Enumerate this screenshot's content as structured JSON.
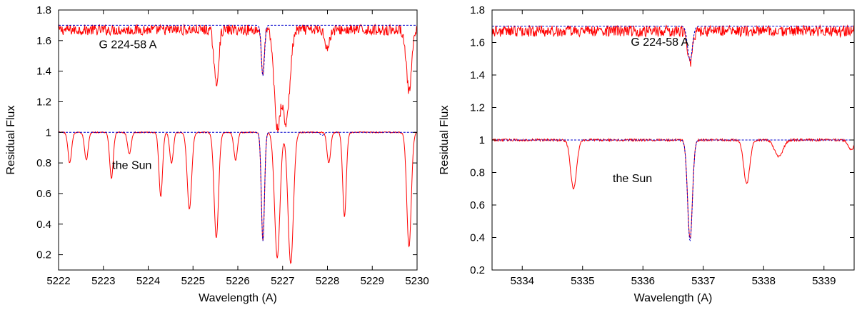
{
  "chart_data": [
    {
      "type": "line",
      "xlabel": "Wavelength (A)",
      "ylabel": "Residual Flux",
      "xlim": [
        5222,
        5230
      ],
      "ylim": [
        0.1,
        1.8
      ],
      "xticks": [
        5222,
        5223,
        5224,
        5225,
        5226,
        5227,
        5228,
        5229,
        5230
      ],
      "yticks": [
        0.2,
        0.4,
        0.6,
        0.8,
        1,
        1.2,
        1.4,
        1.6,
        1.8
      ],
      "annotations": [
        {
          "text": "G 224-58 A",
          "x": 5222.9,
          "y": 1.55
        },
        {
          "text": "the Sun",
          "x": 5223.2,
          "y": 0.76
        }
      ],
      "series": [
        {
          "style": "observed",
          "color": "#ff0000",
          "offset": 0.67,
          "noise": 0.035,
          "lines": [
            {
              "center": 5225.52,
              "depth": 0.36,
              "width": 0.05
            },
            {
              "center": 5226.56,
              "depth": 0.3,
              "width": 0.03
            },
            {
              "center": 5226.88,
              "depth": 0.62,
              "width": 0.07
            },
            {
              "center": 5227.08,
              "depth": 0.6,
              "width": 0.08
            },
            {
              "center": 5229.82,
              "depth": 0.4,
              "width": 0.06
            },
            {
              "center": 5228.0,
              "depth": 0.12,
              "width": 0.05
            }
          ]
        },
        {
          "style": "model",
          "color": "#0000cc",
          "offset": 0.7,
          "continuum": 1.0,
          "lines": [
            {
              "center": 5226.56,
              "depth": 0.33,
              "width": 0.035
            }
          ]
        },
        {
          "style": "observed",
          "color": "#ff0000",
          "offset": 0.0,
          "noise": 0.004,
          "lines": [
            {
              "center": 5222.25,
              "depth": 0.2,
              "width": 0.04
            },
            {
              "center": 5222.62,
              "depth": 0.18,
              "width": 0.04
            },
            {
              "center": 5223.18,
              "depth": 0.3,
              "width": 0.04
            },
            {
              "center": 5223.58,
              "depth": 0.14,
              "width": 0.04
            },
            {
              "center": 5224.28,
              "depth": 0.42,
              "width": 0.04
            },
            {
              "center": 5224.52,
              "depth": 0.2,
              "width": 0.04
            },
            {
              "center": 5224.92,
              "depth": 0.5,
              "width": 0.05
            },
            {
              "center": 5225.52,
              "depth": 0.69,
              "width": 0.05
            },
            {
              "center": 5225.95,
              "depth": 0.18,
              "width": 0.04
            },
            {
              "center": 5226.56,
              "depth": 0.71,
              "width": 0.035
            },
            {
              "center": 5226.88,
              "depth": 0.82,
              "width": 0.06
            },
            {
              "center": 5227.18,
              "depth": 0.86,
              "width": 0.06
            },
            {
              "center": 5228.03,
              "depth": 0.2,
              "width": 0.04
            },
            {
              "center": 5228.38,
              "depth": 0.55,
              "width": 0.04
            },
            {
              "center": 5229.82,
              "depth": 0.75,
              "width": 0.05
            }
          ]
        },
        {
          "style": "model",
          "color": "#0000cc",
          "offset": 0.0,
          "continuum": 1.0,
          "lines": [
            {
              "center": 5226.56,
              "depth": 0.71,
              "width": 0.035
            },
            {
              "center": 5227.88,
              "depth": 0.02,
              "width": 0.04
            }
          ]
        }
      ]
    },
    {
      "type": "line",
      "xlabel": "Wavelength (A)",
      "ylabel": "Residual Flux",
      "xlim": [
        5333.5,
        5339.5
      ],
      "ylim": [
        0.2,
        1.8
      ],
      "xticks": [
        5334,
        5335,
        5336,
        5337,
        5338,
        5339
      ],
      "yticks": [
        0.2,
        0.4,
        0.6,
        0.8,
        1,
        1.2,
        1.4,
        1.6,
        1.8
      ],
      "annotations": [
        {
          "text": "G 224-58 A",
          "x": 5335.8,
          "y": 1.58
        },
        {
          "text": "the Sun",
          "x": 5335.5,
          "y": 0.74
        }
      ],
      "series": [
        {
          "style": "observed",
          "color": "#ff0000",
          "offset": 0.67,
          "noise": 0.035,
          "lines": [
            {
              "center": 5336.78,
              "depth": 0.2,
              "width": 0.04
            }
          ]
        },
        {
          "style": "model",
          "color": "#0000cc",
          "offset": 0.7,
          "continuum": 1.0,
          "lines": [
            {
              "center": 5336.78,
              "depth": 0.21,
              "width": 0.04
            }
          ]
        },
        {
          "style": "observed",
          "color": "#ff0000",
          "offset": 0.0,
          "noise": 0.007,
          "lines": [
            {
              "center": 5334.85,
              "depth": 0.3,
              "width": 0.05
            },
            {
              "center": 5336.78,
              "depth": 0.61,
              "width": 0.04
            },
            {
              "center": 5337.72,
              "depth": 0.27,
              "width": 0.05
            },
            {
              "center": 5338.25,
              "depth": 0.1,
              "width": 0.07
            },
            {
              "center": 5339.45,
              "depth": 0.06,
              "width": 0.05
            }
          ]
        },
        {
          "style": "model",
          "color": "#0000cc",
          "offset": 0.0,
          "continuum": 1.0,
          "lines": [
            {
              "center": 5336.78,
              "depth": 0.62,
              "width": 0.04
            }
          ]
        }
      ]
    }
  ]
}
